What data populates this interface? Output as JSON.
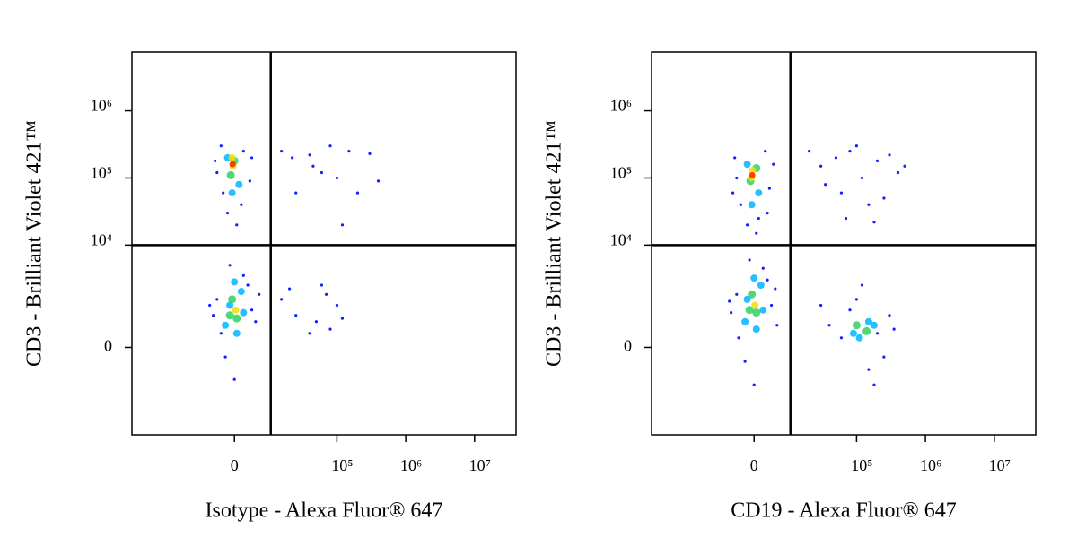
{
  "chart_data": [
    {
      "type": "scatter",
      "x_label": "Isotype - Alexa Fluor® 647",
      "y_label": "CD3 - Brilliant Violet 421™",
      "x_scale": "biexponential",
      "y_scale": "biexponential",
      "xlim": [
        -100000,
        40000000
      ],
      "ylim": [
        -6000,
        7500000
      ],
      "xticks": [
        0,
        {
          "value": 100000,
          "label": "10⁵"
        },
        {
          "value": 1000000,
          "label": "10⁶"
        },
        {
          "value": 10000000,
          "label": "10⁷"
        }
      ],
      "yticks": [
        0,
        {
          "value": 10000,
          "label": "10⁴"
        },
        {
          "value": 100000,
          "label": "10⁵"
        },
        {
          "value": 1000000,
          "label": "10⁶"
        }
      ],
      "quadrant": [
        10000,
        10000
      ],
      "series": [
        {
          "color": "#1020ff",
          "x": [
            -4000,
            3500,
            -2500,
            2000,
            -3000,
            1500,
            -1500,
            4000,
            -4500,
            500,
            -4000,
            4000,
            -3000,
            3000,
            -5000,
            5000,
            -2000,
            2000,
            0,
            -1000,
            6000,
            -6000,
            15000,
            22000,
            40000,
            80000,
            150000,
            300000,
            60000,
            100000,
            25000,
            200000,
            45000,
            400000,
            120000,
            15000,
            25000,
            50000,
            80000,
            100000,
            60000,
            40000,
            120000,
            70000,
            20000
          ],
          "values": [
            120000,
            90000,
            60000,
            250000,
            300000,
            40000,
            30000,
            200000,
            180000,
            20000,
            1500,
            1000,
            300,
            2500,
            800,
            600,
            -200,
            3500,
            -800,
            5000,
            1800,
            1200,
            250000,
            200000,
            220000,
            300000,
            250000,
            230000,
            120000,
            100000,
            60000,
            60000,
            150000,
            90000,
            20000,
            1500,
            800,
            600,
            400,
            1200,
            2500,
            300,
            700,
            1800,
            2200
          ]
        },
        {
          "color": "#00b4ff",
          "x": [
            -1500,
            1000,
            -500,
            -1000,
            1500,
            -2000,
            500,
            0,
            2000
          ],
          "values": [
            200000,
            80000,
            60000,
            1200,
            2000,
            500,
            300,
            2800,
            900
          ]
        },
        {
          "color": "#30d060",
          "x": [
            -500,
            500,
            -1000,
            0,
            -800
          ],
          "values": [
            1500,
            700,
            800,
            180000,
            110000
          ]
        },
        {
          "color": "#f0e000",
          "x": [
            -300,
            300,
            -500
          ],
          "values": [
            150000,
            1000,
            200000
          ]
        },
        {
          "color": "#ff2000",
          "x": [
            -400
          ],
          "values": [
            160000
          ]
        }
      ]
    },
    {
      "type": "scatter",
      "x_label": "CD19 - Alexa Fluor® 647",
      "y_label": "CD3 - Brilliant Violet 421™",
      "x_scale": "biexponential",
      "y_scale": "biexponential",
      "xlim": [
        -100000,
        40000000
      ],
      "ylim": [
        -6000,
        7500000
      ],
      "xticks": [
        0,
        {
          "value": 100000,
          "label": "10⁵"
        },
        {
          "value": 1000000,
          "label": "10⁶"
        },
        {
          "value": 10000000,
          "label": "10⁷"
        }
      ],
      "yticks": [
        0,
        {
          "value": 10000,
          "label": "10⁴"
        },
        {
          "value": 100000,
          "label": "10⁵"
        },
        {
          "value": 1000000,
          "label": "10⁶"
        }
      ],
      "quadrant": [
        10000,
        10000
      ],
      "series": [
        {
          "color": "#1020ff",
          "x": [
            -4000,
            3500,
            -3000,
            2500,
            -4500,
            1000,
            -1500,
            4500,
            500,
            -5000,
            3000,
            -4000,
            4000,
            -3500,
            3000,
            -5500,
            5500,
            -2000,
            2000,
            0,
            -1000,
            5000,
            -6000,
            40000,
            60000,
            200000,
            300000,
            100000,
            250000,
            150000,
            80000,
            350000,
            120000,
            30000,
            180000,
            20000,
            30000,
            50000,
            80000,
            120000,
            200000,
            300000,
            400000,
            60000,
            150000,
            250000,
            35000,
            100000,
            500000,
            70000,
            180000
          ],
          "values": [
            100000,
            70000,
            40000,
            250000,
            200000,
            25000,
            20000,
            160000,
            15000,
            60000,
            30000,
            1800,
            1200,
            200,
            3000,
            900,
            500,
            -300,
            4500,
            -1000,
            6000,
            2200,
            1400,
            500,
            200,
            300,
            800,
            1500,
            -200,
            -500,
            1000,
            400,
            2500,
            1200,
            -1000,
            250000,
            150000,
            200000,
            250000,
            100000,
            180000,
            220000,
            120000,
            60000,
            40000,
            50000,
            80000,
            300000,
            150000,
            25000,
            22000
          ]
        },
        {
          "color": "#00b4ff",
          "x": [
            -1500,
            1000,
            -500,
            -1500,
            1500,
            -2000,
            500,
            0,
            2000,
            90000,
            150000,
            110000,
            180000
          ],
          "values": [
            160000,
            60000,
            40000,
            1500,
            2500,
            600,
            400,
            3200,
            1000,
            300,
            600,
            200,
            500
          ]
        },
        {
          "color": "#30d060",
          "x": [
            -500,
            500,
            -1000,
            -800,
            500,
            100000,
            140000
          ],
          "values": [
            1800,
            900,
            1000,
            90000,
            140000,
            500,
            350
          ]
        },
        {
          "color": "#f0e000",
          "x": [
            -300,
            200,
            -600
          ],
          "values": [
            130000,
            1200,
            100000
          ]
        },
        {
          "color": "#ff2000",
          "x": [
            -400
          ],
          "values": [
            110000
          ]
        }
      ]
    }
  ]
}
